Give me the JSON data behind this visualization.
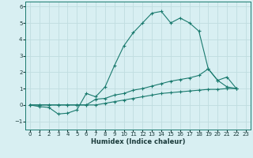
{
  "xlabel": "Humidex (Indice chaleur)",
  "background_color": "#d8eff2",
  "grid_color": "#c0dde0",
  "line_color": "#1a7a6e",
  "xlim": [
    -0.5,
    23.5
  ],
  "ylim": [
    -1.5,
    6.3
  ],
  "yticks": [
    -1,
    0,
    1,
    2,
    3,
    4,
    5,
    6
  ],
  "xticks": [
    0,
    1,
    2,
    3,
    4,
    5,
    6,
    7,
    8,
    9,
    10,
    11,
    12,
    13,
    14,
    15,
    16,
    17,
    18,
    19,
    20,
    21,
    22,
    23
  ],
  "line1_x": [
    0,
    1,
    2,
    3,
    4,
    5,
    6,
    7,
    8,
    9,
    10,
    11,
    12,
    13,
    14,
    15,
    16,
    17,
    18,
    19,
    20,
    21,
    22
  ],
  "line1_y": [
    0.0,
    -0.1,
    -0.15,
    -0.55,
    -0.5,
    -0.3,
    0.7,
    0.5,
    1.1,
    2.4,
    3.6,
    4.4,
    5.0,
    5.6,
    5.7,
    5.0,
    5.3,
    5.0,
    4.5,
    2.2,
    1.5,
    1.7,
    1.0
  ],
  "line2_x": [
    0,
    1,
    2,
    3,
    4,
    5,
    6,
    7,
    8,
    9,
    10,
    11,
    12,
    13,
    14,
    15,
    16,
    17,
    18,
    19,
    20,
    21,
    22
  ],
  "line2_y": [
    0.0,
    0.0,
    0.0,
    0.0,
    0.0,
    0.0,
    0.0,
    0.35,
    0.4,
    0.6,
    0.7,
    0.9,
    1.0,
    1.15,
    1.3,
    1.45,
    1.55,
    1.65,
    1.8,
    2.2,
    1.5,
    1.1,
    1.0
  ],
  "line3_x": [
    0,
    1,
    2,
    3,
    4,
    5,
    6,
    7,
    8,
    9,
    10,
    11,
    12,
    13,
    14,
    15,
    16,
    17,
    18,
    19,
    20,
    21,
    22
  ],
  "line3_y": [
    0.0,
    0.0,
    0.0,
    0.0,
    0.0,
    0.0,
    0.0,
    0.0,
    0.1,
    0.2,
    0.3,
    0.4,
    0.5,
    0.6,
    0.7,
    0.75,
    0.8,
    0.85,
    0.9,
    0.95,
    0.95,
    1.0,
    1.0
  ],
  "tick_fontsize": 5.0,
  "xlabel_fontsize": 6.0
}
